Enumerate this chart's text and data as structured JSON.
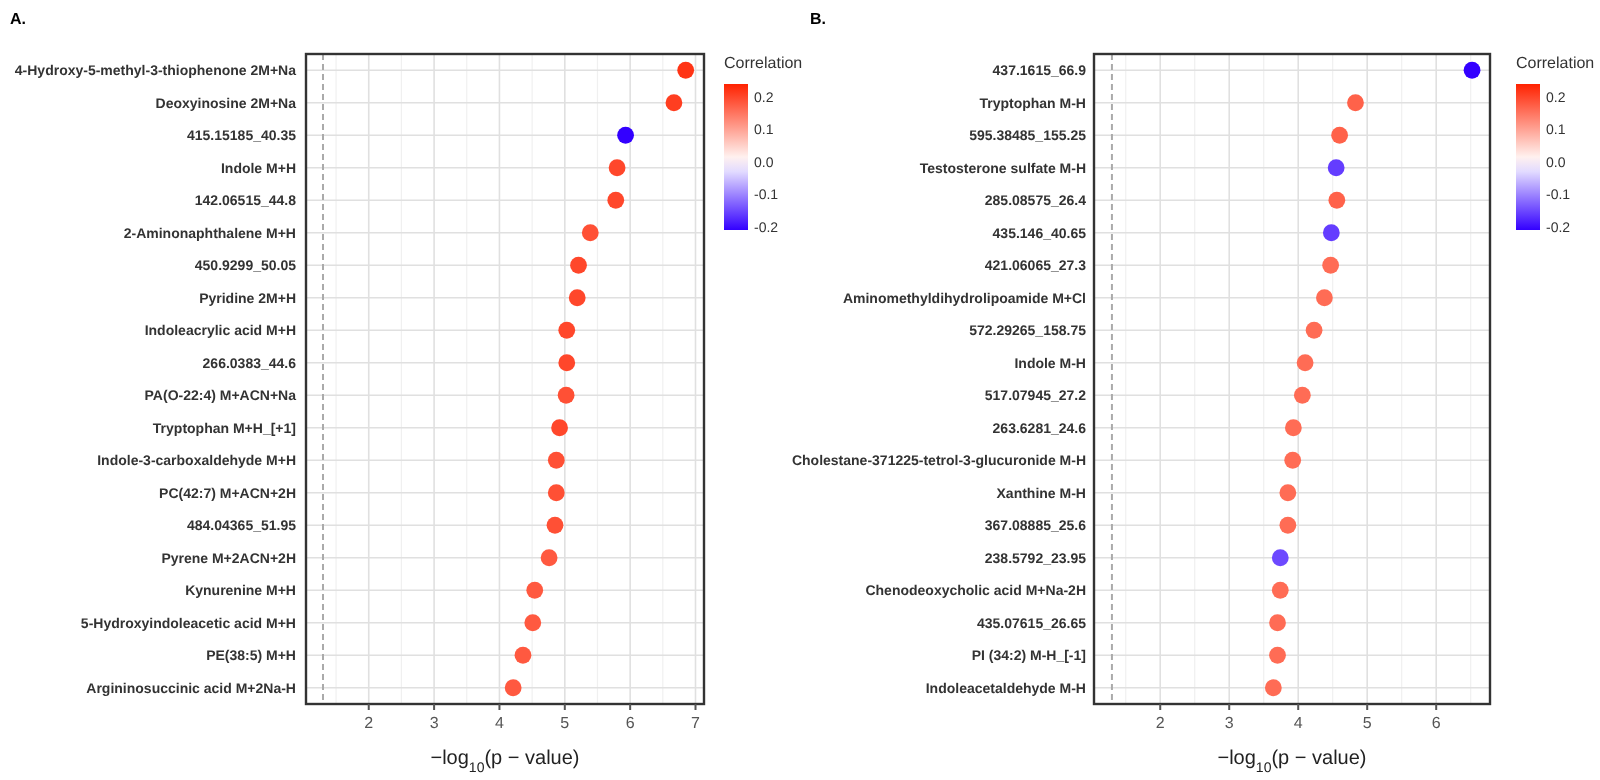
{
  "chart_data": [
    {
      "type": "scatter",
      "title": "A.",
      "xlabel": "−log$_{10}$(p − value)",
      "clabel": "Correlation",
      "orientation": "horizontal",
      "marker": "circle",
      "grid": true,
      "categories": [
        "4-Hydroxy-5-methyl-3-thiophenone 2M+Na",
        "Deoxyinosine 2M+Na",
        "415.15185_40.35",
        "Indole M+H",
        "142.06515_44.8",
        "2-Aminonaphthalene M+H",
        "450.9299_50.05",
        "Pyridine 2M+H",
        "Indoleacrylic acid M+H",
        "266.0383_44.6",
        "PA(O-22:4) M+ACN+Na",
        "Tryptophan M+H_[+1]",
        "Indole-3-carboxaldehyde M+H",
        "PC(42:7) M+ACN+2H",
        "484.04365_51.95",
        "Pyrene M+2ACN+2H",
        "Kynurenine M+H",
        "5-Hydroxyindoleacetic acid M+H",
        "PE(38:5) M+H",
        "Argininosuccinic acid M+2Na-H"
      ],
      "values": [
        6.85,
        6.67,
        5.93,
        5.8,
        5.78,
        5.39,
        5.21,
        5.19,
        5.03,
        5.03,
        5.02,
        4.92,
        4.87,
        4.87,
        4.85,
        4.76,
        4.54,
        4.51,
        4.36,
        4.21
      ],
      "cvalues": [
        0.22,
        0.21,
        -0.21,
        0.2,
        0.2,
        0.19,
        0.2,
        0.2,
        0.2,
        0.2,
        0.19,
        0.2,
        0.19,
        0.19,
        0.19,
        0.18,
        0.18,
        0.18,
        0.18,
        0.18
      ],
      "xlim": [
        1.04,
        7.13
      ],
      "xticks": [
        2,
        3,
        4,
        5,
        6,
        7
      ],
      "clim": [
        -0.21,
        0.24
      ],
      "cticks": [
        -0.2,
        -0.1,
        {
          "value": 0,
          "label": "0.0"
        },
        0.1,
        0.2
      ],
      "ref_lines": [
        {
          "axis": "x",
          "value": 1.3,
          "line_style": "dashed",
          "color": "#aaaaaa"
        }
      ]
    },
    {
      "type": "scatter",
      "title": "B.",
      "xlabel": "−log$_{10}$(p − value)",
      "clabel": "Correlation",
      "orientation": "horizontal",
      "marker": "circle",
      "grid": true,
      "categories": [
        "437.1615_66.9",
        "Tryptophan M-H",
        "595.38485_155.25",
        "Testosterone sulfate M-H",
        "285.08575_26.4",
        "435.146_40.65",
        "421.06065_27.3",
        "Aminomethyldihydrolipoamide M+Cl",
        "572.29265_158.75",
        "Indole M-H",
        "517.07945_27.2",
        "263.6281_24.6",
        "Cholestane-371225-tetrol-3-glucuronide M-H",
        "Xanthine M-H",
        "367.08885_25.6",
        "238.5792_23.95",
        "Chenodeoxycholic acid M+Na-2H",
        "435.07615_26.65",
        "PI (34:2) M-H_[-1]",
        "Indoleacetaldehyde M-H"
      ],
      "values": [
        6.52,
        4.83,
        4.6,
        4.55,
        4.56,
        4.48,
        4.47,
        4.38,
        4.23,
        4.1,
        4.06,
        3.93,
        3.92,
        3.85,
        3.85,
        3.74,
        3.74,
        3.7,
        3.7,
        3.64
      ],
      "cvalues": [
        -0.21,
        0.17,
        0.17,
        -0.16,
        0.17,
        -0.16,
        0.16,
        0.16,
        0.16,
        0.16,
        0.16,
        0.16,
        0.16,
        0.16,
        0.16,
        -0.15,
        0.16,
        0.16,
        0.16,
        0.16
      ],
      "xlim": [
        1.04,
        6.78
      ],
      "xticks": [
        2,
        3,
        4,
        5,
        6
      ],
      "clim": [
        -0.21,
        0.24
      ],
      "cticks": [
        -0.2,
        -0.1,
        {
          "value": 0,
          "label": "0.0"
        },
        0.1,
        0.2
      ],
      "ref_lines": [
        {
          "axis": "x",
          "value": 1.3,
          "line_style": "dashed",
          "color": "#aaaaaa"
        }
      ]
    }
  ]
}
